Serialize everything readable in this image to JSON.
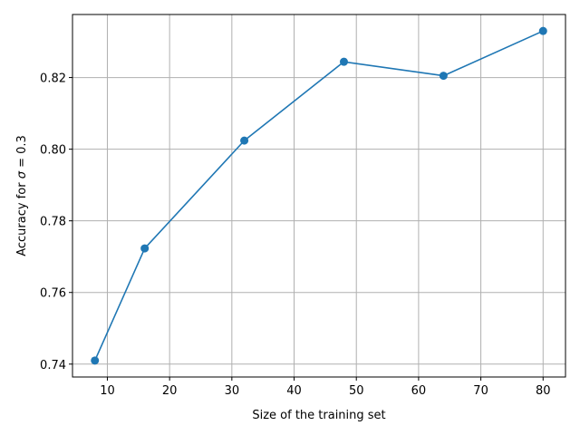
{
  "chart_data": {
    "type": "line",
    "x": [
      8,
      16,
      32,
      48,
      64,
      80
    ],
    "series": [
      {
        "values": [
          0.741,
          0.7723,
          0.8024,
          0.8244,
          0.8205,
          0.833
        ],
        "color": "#1f77b4",
        "marker": "circle"
      }
    ],
    "xlabel": "Size of the training set",
    "ylabel_prefix": "Accuracy for ",
    "ylabel_symbol": "σ",
    "ylabel_suffix": " = 0.3",
    "xlim": [
      4.4,
      83.6
    ],
    "ylim": [
      0.7364,
      0.8376
    ],
    "xticks": [
      10,
      20,
      30,
      40,
      50,
      60,
      70,
      80
    ],
    "yticks": [
      0.74,
      0.76,
      0.78,
      0.8,
      0.82
    ],
    "xtick_labels": [
      "10",
      "20",
      "30",
      "40",
      "50",
      "60",
      "70",
      "80"
    ],
    "ytick_labels": [
      "0.74",
      "0.76",
      "0.78",
      "0.80",
      "0.82"
    ],
    "grid": true,
    "grid_color": "#b0b0b0"
  }
}
